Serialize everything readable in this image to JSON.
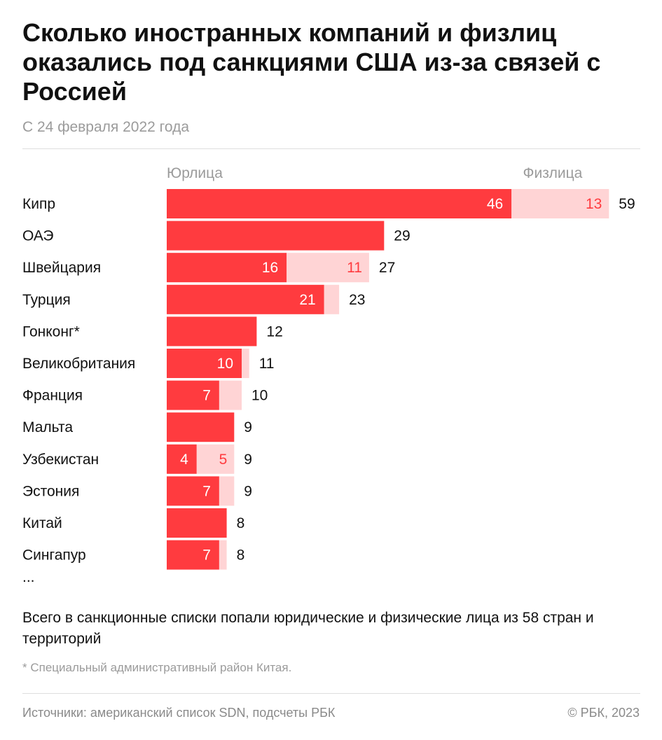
{
  "header": {
    "title": "Сколько иностранных компаний и физлиц оказались под санкциями США из-за связей с Россией",
    "subtitle": "С 24 февраля 2022 года"
  },
  "chart_data": {
    "type": "bar",
    "stacked": true,
    "orientation": "horizontal",
    "categories": [
      "Кипр",
      "ОАЭ",
      "Швейцария",
      "Турция",
      "Гонконг*",
      "Великобритания",
      "Франция",
      "Мальта",
      "Узбекистан",
      "Эстония",
      "Китай",
      "Сингапур"
    ],
    "series": [
      {
        "name": "Юрлица",
        "values": [
          46,
          29,
          16,
          21,
          12,
          10,
          7,
          9,
          4,
          7,
          8,
          7
        ],
        "value_labels": [
          "46",
          "",
          "16",
          "21",
          "",
          "10",
          "7",
          "",
          "4",
          "7",
          "",
          "7"
        ]
      },
      {
        "name": "Физлица",
        "values": [
          13,
          0,
          11,
          2,
          0,
          1,
          3,
          0,
          5,
          2,
          0,
          1
        ],
        "value_labels": [
          "13",
          "",
          "11",
          "",
          "",
          "",
          "",
          "",
          "5",
          "",
          "",
          ""
        ]
      }
    ],
    "totals": [
      59,
      29,
      27,
      23,
      12,
      11,
      10,
      9,
      9,
      9,
      8,
      8
    ],
    "continuation": "...",
    "colors": {
      "legal": "#ff3b3f",
      "individuals": "#ffd4d5",
      "legal_label": "#ffffff",
      "individuals_label": "#ff3b3f"
    },
    "xlim": [
      0,
      59
    ],
    "legend_position": "top"
  },
  "notes": {
    "summary": "Всего в санкционные списки попали юридические и физические лица из 58 стран и территорий",
    "footnote": "* Специальный административный район Китая."
  },
  "footer": {
    "sources": "Источники: американский список SDN, подсчеты РБК",
    "copyright": "© РБК, 2023"
  }
}
